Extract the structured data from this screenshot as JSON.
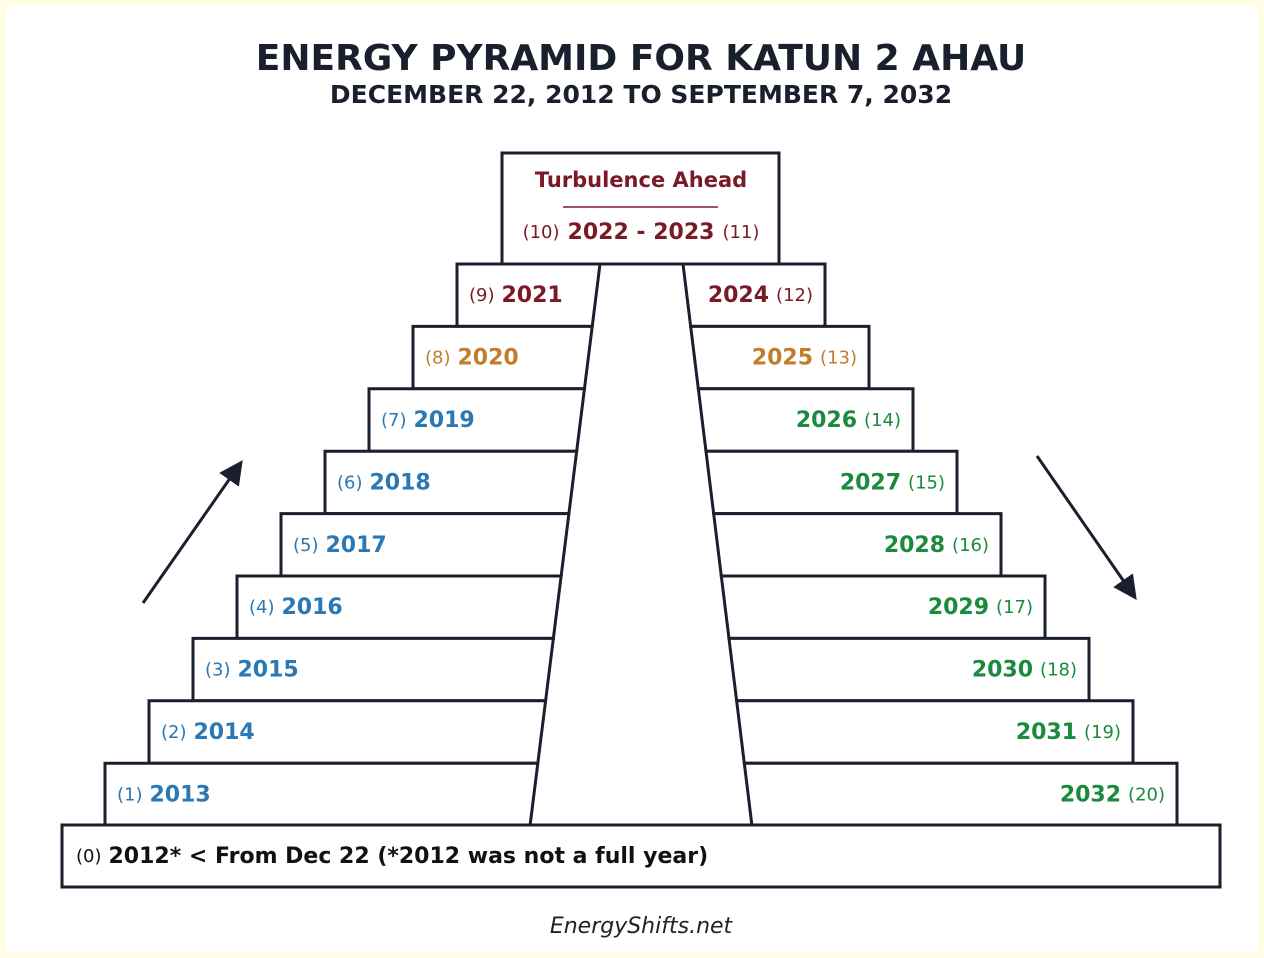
{
  "title": "ENERGY PYRAMID FOR KATUN 2 AHAU",
  "subtitle": "DECEMBER 22, 2012 TO SEPTEMBER 7, 2032",
  "peak": {
    "label": "Turbulence Ahead",
    "left_index": "(10)",
    "years": "2022 - 2023",
    "right_index": "(11)",
    "color": "#7a1a26"
  },
  "left_steps": [
    {
      "index": "(9)",
      "year": "2021",
      "color": "#7a1a26"
    },
    {
      "index": "(8)",
      "year": "2020",
      "color": "#c27c2c"
    },
    {
      "index": "(7)",
      "year": "2019",
      "color": "#2a78b4"
    },
    {
      "index": "(6)",
      "year": "2018",
      "color": "#2a78b4"
    },
    {
      "index": "(5)",
      "year": "2017",
      "color": "#2a78b4"
    },
    {
      "index": "(4)",
      "year": "2016",
      "color": "#2a78b4"
    },
    {
      "index": "(3)",
      "year": "2015",
      "color": "#2a78b4"
    },
    {
      "index": "(2)",
      "year": "2014",
      "color": "#2a78b4"
    },
    {
      "index": "(1)",
      "year": "2013",
      "color": "#2a78b4"
    }
  ],
  "right_steps": [
    {
      "year": "2024",
      "index": "(12)",
      "color": "#7a1a26"
    },
    {
      "year": "2025",
      "index": "(13)",
      "color": "#c27c2c"
    },
    {
      "year": "2026",
      "index": "(14)",
      "color": "#1a8a3c"
    },
    {
      "year": "2027",
      "index": "(15)",
      "color": "#1a8a3c"
    },
    {
      "year": "2028",
      "index": "(16)",
      "color": "#1a8a3c"
    },
    {
      "year": "2029",
      "index": "(17)",
      "color": "#1a8a3c"
    },
    {
      "year": "2030",
      "index": "(18)",
      "color": "#1a8a3c"
    },
    {
      "year": "2031",
      "index": "(19)",
      "color": "#1a8a3c"
    },
    {
      "year": "2032",
      "index": "(20)",
      "color": "#1a8a3c"
    }
  ],
  "base": {
    "index": "(0)",
    "text": "2012* < From Dec 22 (*2012 was not a full year)"
  },
  "footer": "EnergyShifts.net"
}
